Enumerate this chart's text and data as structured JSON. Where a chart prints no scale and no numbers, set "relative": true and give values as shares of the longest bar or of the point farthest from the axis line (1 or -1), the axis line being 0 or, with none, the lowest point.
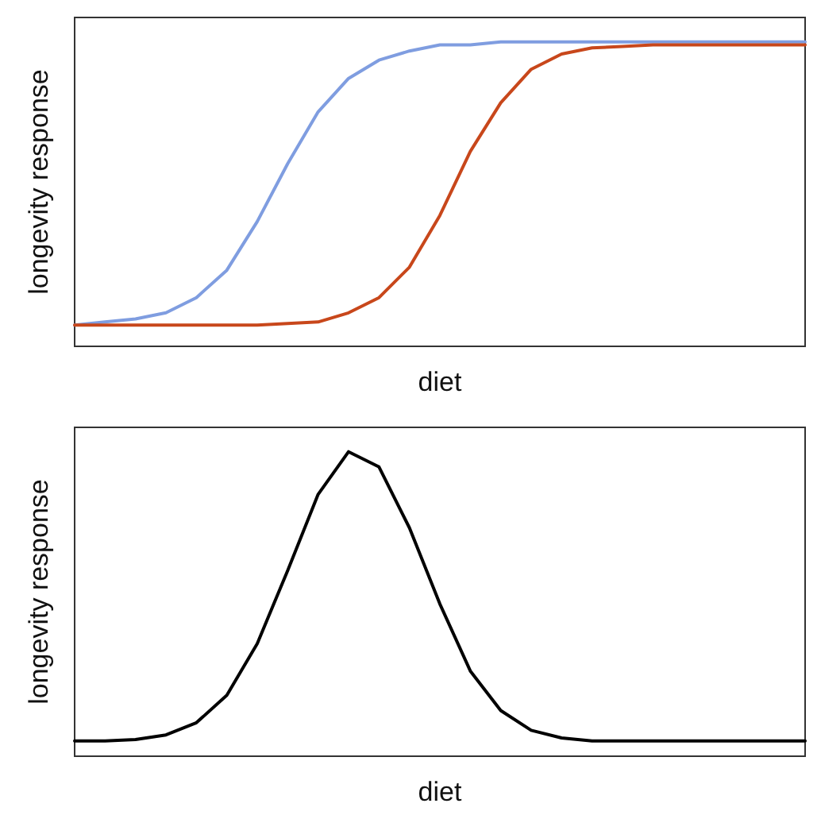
{
  "chart_data": [
    {
      "type": "line",
      "relative": true,
      "xlabel": "diet",
      "ylabel": "longevity response",
      "grid": false,
      "marker": "none",
      "line_style": "solid",
      "categories": [
        null,
        null,
        null,
        null,
        null,
        null,
        null,
        null,
        null,
        null,
        null,
        null,
        null,
        null,
        null,
        null,
        null,
        null,
        null,
        null,
        null,
        null,
        null,
        null,
        null
      ],
      "series": [
        {
          "color": "#7f9de0",
          "values": [
            0.07,
            0.08,
            0.09,
            0.11,
            0.16,
            0.25,
            0.41,
            0.6,
            0.77,
            0.88,
            0.94,
            0.97,
            0.99,
            0.99,
            1,
            1,
            1,
            1,
            1,
            1,
            1,
            1,
            1,
            1,
            1
          ]
        },
        {
          "color": "#c8471b",
          "values": [
            0.07,
            0.07,
            0.07,
            0.07,
            0.07,
            0.07,
            0.07,
            0.075,
            0.08,
            0.11,
            0.16,
            0.26,
            0.43,
            0.64,
            0.8,
            0.91,
            0.96,
            0.98,
            0.985,
            0.99,
            0.99,
            0.99,
            0.99,
            0.99,
            0.99
          ]
        }
      ]
    },
    {
      "type": "line",
      "relative": true,
      "xlabel": "diet",
      "ylabel": "longevity response",
      "grid": false,
      "marker": "none",
      "line_style": "solid",
      "categories": [
        null,
        null,
        null,
        null,
        null,
        null,
        null,
        null,
        null,
        null,
        null,
        null,
        null,
        null,
        null,
        null,
        null,
        null,
        null,
        null,
        null,
        null,
        null,
        null,
        null
      ],
      "series": [
        {
          "color": "#000000",
          "values": [
            0.05,
            0.05,
            0.055,
            0.07,
            0.11,
            0.2,
            0.37,
            0.61,
            0.86,
            1,
            0.95,
            0.75,
            0.5,
            0.28,
            0.15,
            0.085,
            0.06,
            0.05,
            0.05,
            0.05,
            0.05,
            0.05,
            0.05,
            0.05,
            0.05
          ]
        }
      ]
    }
  ]
}
